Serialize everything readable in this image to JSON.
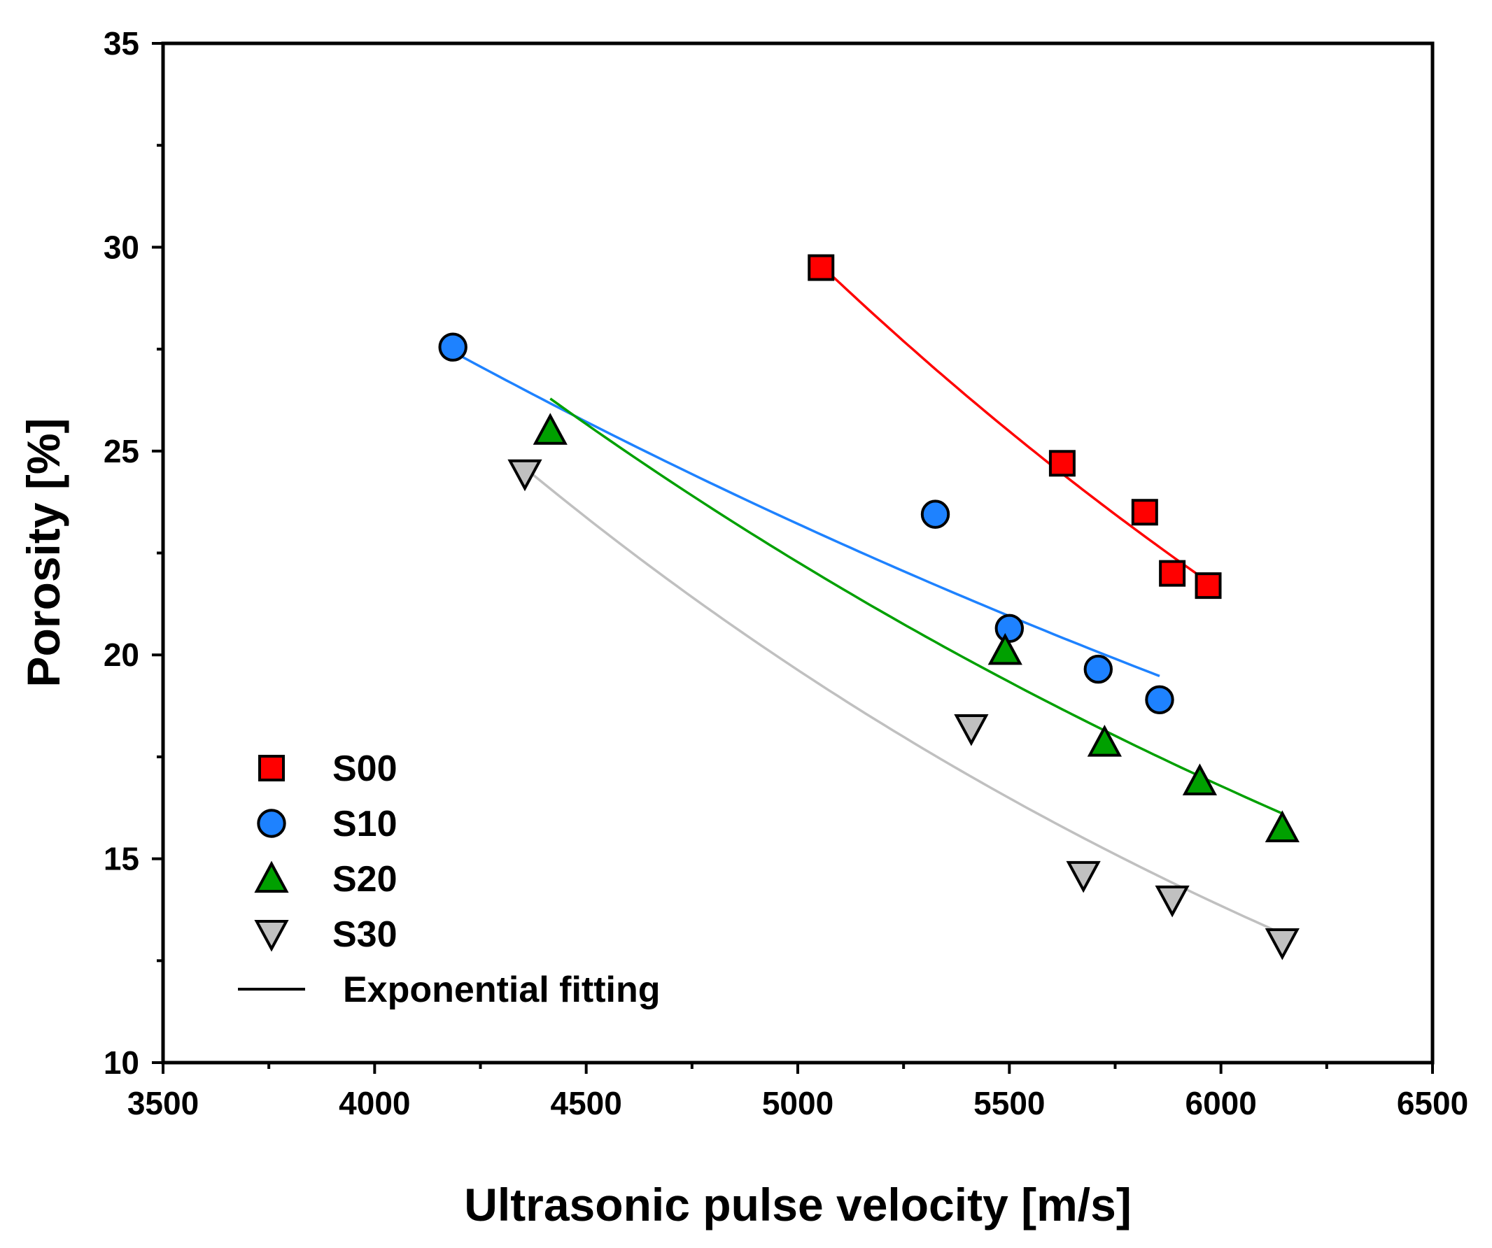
{
  "chart_data": {
    "type": "scatter",
    "title": "",
    "xlabel": "Ultrasonic pulse velocity [m/s]",
    "ylabel": "Porosity [%]",
    "xlim": [
      3500,
      6500
    ],
    "ylim": [
      10,
      35
    ],
    "x_major_ticks": [
      3500,
      4000,
      4500,
      5000,
      5500,
      6000,
      6500
    ],
    "x_tick_labels": [
      "3500",
      "4000",
      "4500",
      "5000",
      "5500",
      "6000",
      "6500"
    ],
    "y_major_ticks": [
      10,
      15,
      20,
      25,
      30,
      35
    ],
    "y_tick_labels": [
      "10",
      "15",
      "20",
      "25",
      "30",
      "35"
    ],
    "grid": false,
    "legend_position": "bottom-left",
    "series": [
      {
        "name": "S00",
        "marker": "square",
        "color": "#ff0000",
        "points": [
          [
            5055,
            29.5
          ],
          [
            5625,
            24.7
          ],
          [
            5820,
            23.5
          ],
          [
            5885,
            22.0
          ],
          [
            5970,
            21.7
          ]
        ],
        "fit": {
          "type": "exponential",
          "x_range": [
            5055,
            5970
          ],
          "a": 159.1,
          "b": -0.000333
        }
      },
      {
        "name": "S10",
        "marker": "circle",
        "color": "#1e82ff",
        "points": [
          [
            4185,
            27.55
          ],
          [
            5325,
            23.45
          ],
          [
            5500,
            20.65
          ],
          [
            5710,
            19.65
          ],
          [
            5855,
            18.9
          ]
        ],
        "fit": {
          "type": "exponential",
          "x_range": [
            4185,
            5855
          ],
          "a": 64.7,
          "b": -0.000205
        }
      },
      {
        "name": "S20",
        "marker": "triangle-up",
        "color": "#00a000",
        "points": [
          [
            4415,
            25.5
          ],
          [
            5490,
            20.1
          ],
          [
            5725,
            17.85
          ],
          [
            5950,
            16.9
          ],
          [
            6145,
            15.75
          ]
        ],
        "fit": {
          "type": "exponential",
          "x_range": [
            4415,
            6145
          ],
          "a": 91.7,
          "b": -0.000283
        }
      },
      {
        "name": "S30",
        "marker": "triangle-down",
        "color": "#c0c0c0",
        "points": [
          [
            4355,
            24.45
          ],
          [
            5410,
            18.2
          ],
          [
            5675,
            14.6
          ],
          [
            5885,
            14.0
          ],
          [
            6145,
            12.95
          ]
        ],
        "fit": {
          "type": "exponential",
          "x_range": [
            4355,
            6145
          ],
          "a": 112.4,
          "b": -0.000349
        }
      }
    ],
    "legend": [
      {
        "label": "S00",
        "marker": "square",
        "color": "#ff0000"
      },
      {
        "label": "S10",
        "marker": "circle",
        "color": "#1e82ff"
      },
      {
        "label": "S20",
        "marker": "triangle-up",
        "color": "#00a000"
      },
      {
        "label": "S30",
        "marker": "triangle-down",
        "color": "#c0c0c0"
      },
      {
        "label": "Exponential fitting",
        "marker": "line",
        "color": "#000000"
      }
    ]
  }
}
